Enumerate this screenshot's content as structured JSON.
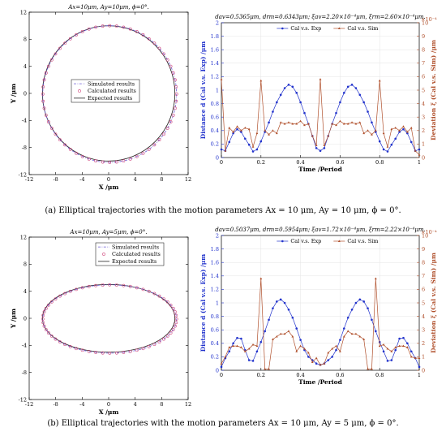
{
  "captions": {
    "a": "(a) Elliptical trajectories with the motion parameters Ax = 10 μm, Ay = 10 μm, ϕ = 0°.",
    "b": "(b) Elliptical trajectories with the motion parameters Ax = 10 μm, Ay = 5 μm, ϕ = 0°."
  },
  "colors": {
    "blue": "#2233cc",
    "brown": "#b0502c",
    "sim": "#6b5bd6",
    "calc": "#d0447a",
    "exp": "#222222"
  },
  "chart_data": [
    {
      "id": "traj-a",
      "type": "scatter",
      "title": "Ax=10μm, Ay=10μm, ϕ=0°.",
      "xlabel": "X /μm",
      "ylabel": "Y /μm",
      "xlim": [
        -12,
        12
      ],
      "ylim": [
        -12,
        12
      ],
      "xticks": [
        "-12",
        "-8",
        "-4",
        "0",
        "4",
        "8",
        "12"
      ],
      "yticks": [
        "-12",
        "-8",
        "-4",
        "0",
        "4",
        "8",
        "12"
      ],
      "legend": [
        "Simulated results",
        "Calculated results",
        "Expected results"
      ],
      "legend_position": "center",
      "ellipse": {
        "ax": 10,
        "ay": 10,
        "cx": 0,
        "cy": 0
      },
      "n_points": 60
    },
    {
      "id": "dev-a",
      "type": "line",
      "title": "dav=0.5365μm, drm=0.6343μm; ξav=2.20×10⁻⁴μm, ξrm=2.60×10⁻⁴μm.",
      "xlabel": "Time /Period",
      "ylabel": "Distance d (Cal v.s. Exp) /μm",
      "ylabel2": "Deviation ξ (Cal v.s. Sim) /μm",
      "xlim": [
        0,
        1
      ],
      "ylim": [
        0,
        2
      ],
      "y2lim": [
        0,
        10
      ],
      "xticks": [
        "0",
        "0.2",
        "0.4",
        "0.6",
        "0.8",
        "1"
      ],
      "yticks": [
        "0",
        "0.2",
        "0.4",
        "0.6",
        "0.8",
        "1",
        "1.2",
        "1.4",
        "1.6",
        "1.8",
        "2"
      ],
      "y2ticks": [
        "0",
        "1",
        "2",
        "3",
        "4",
        "5",
        "6",
        "7",
        "8",
        "9",
        "10"
      ],
      "y2exp": "×10⁻⁴",
      "legend": [
        "Cal v.s. Exp",
        "Cal v.s. Sim"
      ],
      "legend_position": "top",
      "x": [
        0,
        0.02,
        0.04,
        0.06,
        0.08,
        0.1,
        0.12,
        0.14,
        0.16,
        0.18,
        0.2,
        0.22,
        0.24,
        0.26,
        0.28,
        0.3,
        0.32,
        0.34,
        0.36,
        0.38,
        0.4,
        0.42,
        0.44,
        0.46,
        0.48,
        0.5,
        0.52,
        0.54,
        0.56,
        0.58,
        0.6,
        0.62,
        0.64,
        0.66,
        0.68,
        0.7,
        0.72,
        0.74,
        0.76,
        0.78,
        0.8,
        0.82,
        0.84,
        0.86,
        0.88,
        0.9,
        0.92,
        0.94,
        0.96,
        0.98,
        1.0
      ],
      "series": [
        {
          "name": "Cal v.s. Exp",
          "axis": "left",
          "values": [
            0.12,
            0.1,
            0.23,
            0.36,
            0.42,
            0.38,
            0.28,
            0.19,
            0.09,
            0.12,
            0.24,
            0.38,
            0.52,
            0.68,
            0.82,
            0.93,
            1.03,
            1.08,
            1.05,
            0.96,
            0.82,
            0.66,
            0.5,
            0.32,
            0.14,
            0.1,
            0.14,
            0.32,
            0.5,
            0.66,
            0.82,
            0.96,
            1.05,
            1.08,
            1.03,
            0.93,
            0.82,
            0.68,
            0.52,
            0.38,
            0.24,
            0.12,
            0.09,
            0.19,
            0.28,
            0.38,
            0.42,
            0.36,
            0.23,
            0.1,
            0.12
          ]
        },
        {
          "name": "Cal v.s. Sim",
          "axis": "right",
          "values": [
            5.8,
            0.5,
            2.2,
            1.9,
            2.3,
            2.0,
            2.2,
            2.1,
            0.8,
            1.8,
            5.7,
            2.0,
            1.7,
            2.0,
            1.8,
            2.6,
            2.5,
            2.6,
            2.5,
            2.5,
            2.7,
            2.4,
            2.5,
            1.6,
            0.9,
            5.8,
            0.9,
            1.6,
            2.5,
            2.4,
            2.7,
            2.5,
            2.5,
            2.6,
            2.5,
            2.6,
            1.8,
            2.0,
            1.7,
            2.0,
            5.7,
            1.8,
            0.8,
            2.1,
            2.2,
            2.0,
            2.3,
            1.9,
            2.2,
            0.5,
            0.2
          ]
        }
      ]
    },
    {
      "id": "traj-b",
      "type": "scatter",
      "title": "Ax=10μm, Ay=5μm, ϕ=0°.",
      "xlabel": "X /μm",
      "ylabel": "Y /μm",
      "xlim": [
        -12,
        12
      ],
      "ylim": [
        -12,
        12
      ],
      "xticks": [
        "-12",
        "-8",
        "-4",
        "0",
        "4",
        "8",
        "12"
      ],
      "yticks": [
        "-12",
        "-8",
        "-4",
        "0",
        "4",
        "8",
        "12"
      ],
      "legend": [
        "Simulated results",
        "Calculated results",
        "Expected results"
      ],
      "legend_position": "top-right",
      "ellipse": {
        "ax": 10,
        "ay": 5,
        "cx": 0,
        "cy": 0
      },
      "n_points": 60
    },
    {
      "id": "dev-b",
      "type": "line",
      "title": "dav=0.5037μm, drm=0.5954μm; ξav=1.72×10⁻⁴μm, ξrm=2.22×10⁻⁴μm.",
      "xlabel": "Time /Period",
      "ylabel": "Distance d (Cal v.s. Exp) /μm",
      "ylabel2": "Deviation ξ (Cal v.s. Sim) /μm",
      "xlim": [
        0,
        1
      ],
      "ylim": [
        0,
        2
      ],
      "y2lim": [
        0,
        10
      ],
      "xticks": [
        "0",
        "0.2",
        "0.4",
        "0.6",
        "0.8",
        "1"
      ],
      "yticks": [
        "0",
        "0.2",
        "0.4",
        "0.6",
        "0.8",
        "1",
        "1.2",
        "1.4",
        "1.6",
        "1.8",
        "2"
      ],
      "y2ticks": [
        "0",
        "1",
        "2",
        "3",
        "4",
        "5",
        "6",
        "7",
        "8",
        "9",
        "10"
      ],
      "y2exp": "×10⁻⁴",
      "legend": [
        "Cal v.s. Exp",
        "Cal v.s. Sim"
      ],
      "legend_position": "top",
      "x": [
        0,
        0.02,
        0.04,
        0.06,
        0.08,
        0.1,
        0.12,
        0.14,
        0.16,
        0.18,
        0.2,
        0.22,
        0.24,
        0.26,
        0.28,
        0.3,
        0.32,
        0.34,
        0.36,
        0.38,
        0.4,
        0.42,
        0.44,
        0.46,
        0.48,
        0.5,
        0.52,
        0.54,
        0.56,
        0.58,
        0.6,
        0.62,
        0.64,
        0.66,
        0.68,
        0.7,
        0.72,
        0.74,
        0.76,
        0.78,
        0.8,
        0.82,
        0.84,
        0.86,
        0.88,
        0.9,
        0.92,
        0.94,
        0.96,
        0.98,
        1.0
      ],
      "series": [
        {
          "name": "Cal v.s. Exp",
          "axis": "left",
          "values": [
            0.05,
            0.18,
            0.28,
            0.4,
            0.48,
            0.47,
            0.3,
            0.15,
            0.14,
            0.28,
            0.42,
            0.58,
            0.75,
            0.92,
            1.02,
            1.05,
            1.0,
            0.9,
            0.78,
            0.62,
            0.45,
            0.3,
            0.2,
            0.15,
            0.1,
            0.08,
            0.1,
            0.15,
            0.2,
            0.3,
            0.45,
            0.62,
            0.78,
            0.9,
            1.0,
            1.05,
            1.02,
            0.92,
            0.75,
            0.58,
            0.42,
            0.28,
            0.14,
            0.15,
            0.3,
            0.47,
            0.48,
            0.4,
            0.28,
            0.18,
            0.05
          ]
        },
        {
          "name": "Cal v.s. Sim",
          "axis": "right",
          "values": [
            0.5,
            1.0,
            1.7,
            1.8,
            1.8,
            1.7,
            1.4,
            1.6,
            1.9,
            1.8,
            6.8,
            0.1,
            0.1,
            2.3,
            2.5,
            2.7,
            2.7,
            2.9,
            2.5,
            1.4,
            1.8,
            1.6,
            1.3,
            0.6,
            0.9,
            0.4,
            0.5,
            1.3,
            1.6,
            1.8,
            1.4,
            2.5,
            2.9,
            2.7,
            2.7,
            2.5,
            2.3,
            0.1,
            0.1,
            6.8,
            1.8,
            1.9,
            1.6,
            1.4,
            1.7,
            1.8,
            1.8,
            1.7,
            1.0,
            0.9,
            0.9
          ]
        }
      ]
    }
  ]
}
